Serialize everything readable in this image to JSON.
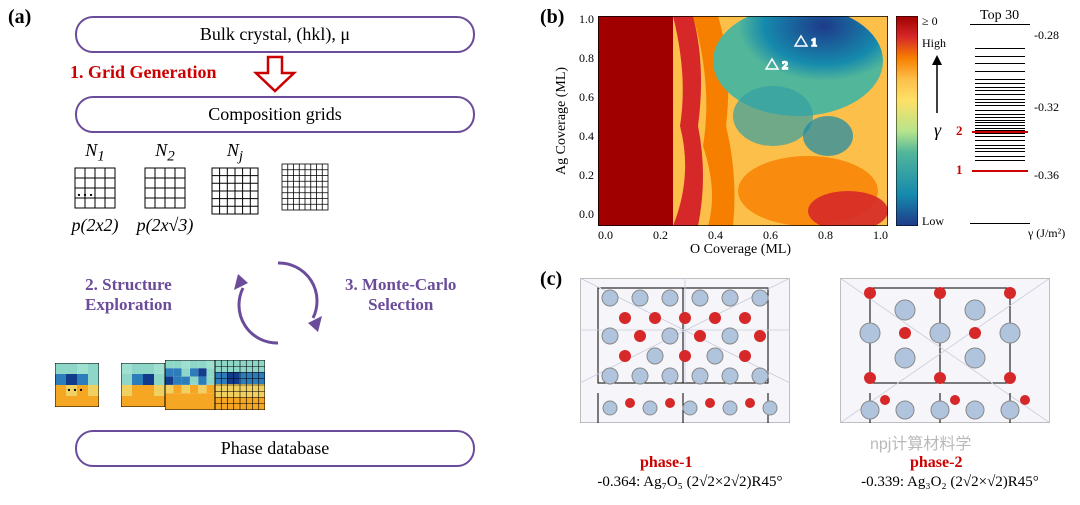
{
  "panel_a": {
    "label": "(a)",
    "box_bulk": "Bulk crystal,  (hkl),  μ",
    "step1": "1. Grid Generation",
    "box_comp": "Composition grids",
    "grids": [
      {
        "n": "N",
        "sub": "1",
        "cells": 4,
        "p": "p(2x2)"
      },
      {
        "n": "N",
        "sub": "2",
        "cells": 4,
        "p": "p(2x√3)"
      },
      {
        "n": "N",
        "sub": "j",
        "cells": 6,
        "p": ""
      },
      {
        "n": "",
        "sub": "",
        "cells": 8,
        "p": ""
      }
    ],
    "step2": "2. Structure\nExploration",
    "step3": "3. Monte-Carlo\nSelection",
    "box_phase": "Phase database",
    "colored_palette": [
      "#f5a623",
      "#8ed6c8",
      "#2e7dbb",
      "#123b8b",
      "#f0d060",
      "#a0e0d0"
    ]
  },
  "panel_b": {
    "label": "(b)",
    "xlabel": "O Coverage (ML)",
    "ylabel": "Ag Coverage (ML)",
    "xticks": [
      "0.0",
      "0.2",
      "0.4",
      "0.6",
      "0.8",
      "1.0"
    ],
    "yticks": [
      "0.0",
      "0.2",
      "0.4",
      "0.6",
      "0.8",
      "1.0"
    ],
    "markers": [
      {
        "id": "1",
        "x": 0.7,
        "y": 0.89
      },
      {
        "id": "2",
        "x": 0.6,
        "y": 0.78
      }
    ],
    "colorbar": {
      "top_label": "≥ 0",
      "high": "High",
      "low": "Low",
      "gamma": "γ",
      "colors": [
        "#a00000",
        "#d62828",
        "#f77f00",
        "#fcbf49",
        "#ffe066",
        "#b5e48c",
        "#52b69a",
        "#34a0a4",
        "#168aad",
        "#1a759f",
        "#1e3a8a"
      ]
    },
    "top30": {
      "title": "Top 30",
      "yticks": [
        "-0.28",
        "-0.32",
        "-0.36"
      ],
      "ylabel": "γ (J/m²)",
      "lines": [
        -0.285,
        -0.29,
        -0.295,
        -0.3,
        -0.305,
        -0.308,
        -0.31,
        -0.312,
        -0.315,
        -0.318,
        -0.32,
        -0.322,
        -0.325,
        -0.328,
        -0.33,
        -0.332,
        -0.333,
        -0.335,
        -0.337,
        -0.338,
        -0.34,
        -0.342,
        -0.345,
        -0.348,
        -0.35,
        -0.352,
        -0.355,
        -0.358
      ],
      "red_lines": [
        {
          "label": "2",
          "y": -0.339
        },
        {
          "label": "1",
          "y": -0.364
        }
      ],
      "ymin": -0.4,
      "ymax": -0.27
    }
  },
  "panel_c": {
    "label": "(c)",
    "phase1": {
      "name": "phase-1",
      "formula": "-0.364:  Ag₇O₅ (2√2×2√2)R45°"
    },
    "phase2": {
      "name": "phase-2",
      "formula": "-0.339:  Ag₃O₂ (2√2×√2)R45°"
    },
    "atom_colors": {
      "Ag": "#b0c4de",
      "O": "#d62828"
    }
  },
  "watermark": "npj计算材料学"
}
